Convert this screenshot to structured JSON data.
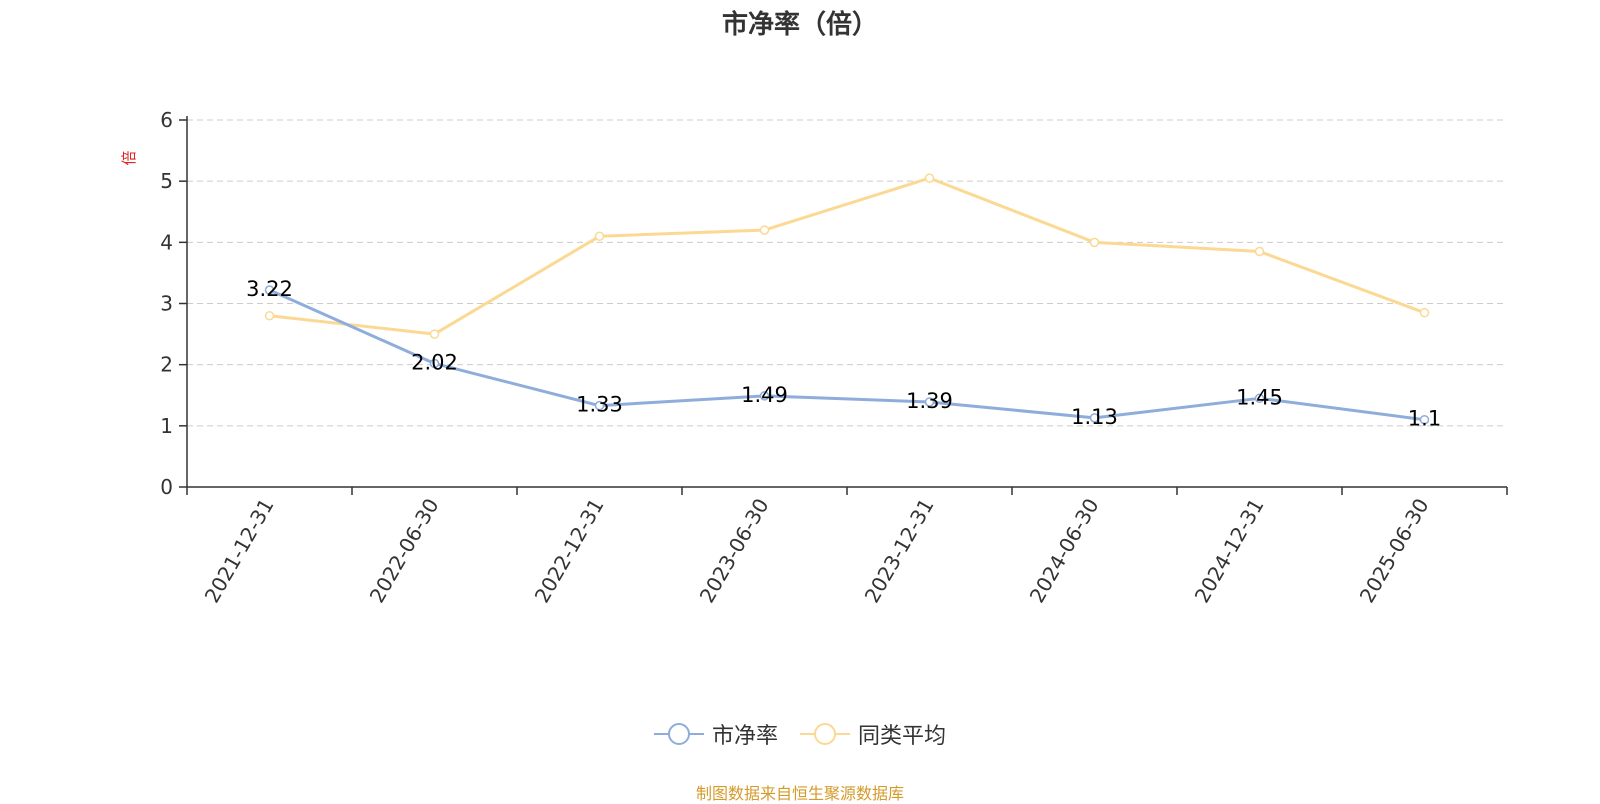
{
  "chart_data": {
    "type": "line",
    "title": "市净率（倍）",
    "ylabel": "倍",
    "xlabel": "",
    "x": [
      "2021-12-31",
      "2022-06-30",
      "2022-12-31",
      "2023-06-30",
      "2023-12-31",
      "2024-06-30",
      "2024-12-31",
      "2025-06-30"
    ],
    "ylim": [
      0,
      6
    ],
    "yticks": [
      "0",
      "1",
      "2",
      "3",
      "4",
      "5",
      "6"
    ],
    "grid": true,
    "legend_position": "bottom",
    "series": [
      {
        "name": "市净率",
        "color": "#8eaddb",
        "values": [
          3.22,
          2.02,
          1.33,
          1.49,
          1.39,
          1.13,
          1.45,
          1.1
        ],
        "labels": [
          "3.22",
          "2.02",
          "1.33",
          "1.49",
          "1.39",
          "1.13",
          "1.45",
          "1.1"
        ]
      },
      {
        "name": "同类平均",
        "color": "#fbd994",
        "values": [
          2.8,
          2.5,
          4.1,
          4.2,
          5.05,
          4.0,
          3.85,
          2.85
        ]
      }
    ]
  },
  "source_note": "制图数据来自恒生聚源数据库"
}
